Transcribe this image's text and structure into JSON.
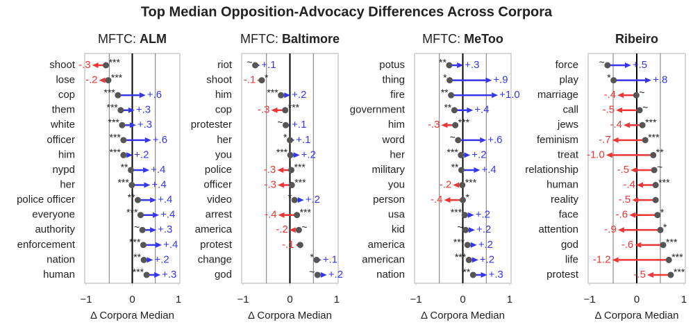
{
  "title": "Top Median Opposition-Advocacy Differences Across Corpora",
  "chart_data": [
    {
      "type": "arrow",
      "title_prefix": "MFTC:",
      "title": "ALM",
      "xlabel": "Δ Corpora Median",
      "xlim": [
        -1.03,
        1.03
      ],
      "xticks": [
        {
          "value": -1,
          "label": "−1"
        },
        0,
        1
      ],
      "vlines": [
        -0.5,
        0,
        0.5
      ],
      "color_positive": "#3535ee",
      "color_negative": "#ee3535",
      "dot_color": "#555555",
      "categories": [
        "shoot",
        "lose",
        "cop",
        "them",
        "white",
        "officer",
        "him",
        "nypd",
        "her",
        "police officer",
        "everyone",
        "authority",
        "enforcement",
        "nation",
        "human"
      ],
      "start": [
        -0.57,
        -0.52,
        -0.31,
        -0.25,
        -0.22,
        -0.19,
        -0.19,
        -0.03,
        -0.01,
        0.12,
        0.18,
        0.22,
        0.24,
        0.25,
        0.31
      ],
      "values": [
        -0.3,
        -0.2,
        0.6,
        0.3,
        0.3,
        0.6,
        0.2,
        0.4,
        0.4,
        0.4,
        0.4,
        0.3,
        0.4,
        0.2,
        0.3
      ],
      "value_labels": [
        "-.3",
        "-.2",
        "+.6",
        "+.3",
        "+.3",
        "+.6",
        "+.2",
        "+.4",
        "+.4",
        "+.4",
        "+.4",
        "+.3",
        "+.4",
        "+.2",
        "+.3"
      ],
      "stars": [
        "***",
        "***",
        "***",
        "***",
        "***",
        "***",
        "***",
        "**",
        "***",
        "**",
        "***",
        "~",
        "***",
        "**",
        "***"
      ]
    },
    {
      "type": "arrow",
      "title_prefix": "MFTC:",
      "title": "Baltimore",
      "xlabel": "Δ Corpora Median",
      "xlim": [
        -1.03,
        1.03
      ],
      "xticks": [
        {
          "value": -1,
          "label": "−1"
        },
        0,
        1
      ],
      "vlines": [
        -0.5,
        0,
        0.5
      ],
      "color_positive": "#3535ee",
      "color_negative": "#ee3535",
      "dot_color": "#555555",
      "categories": [
        "riot",
        "shoot",
        "him",
        "cop",
        "protester",
        "her",
        "you",
        "police",
        "officer",
        "video",
        "arrest",
        "america",
        "protest",
        "change",
        "god"
      ],
      "start": [
        -0.74,
        -0.6,
        -0.19,
        -0.1,
        -0.09,
        0.0,
        0.01,
        0.03,
        0.04,
        0.1,
        0.15,
        0.19,
        0.22,
        0.57,
        0.59
      ],
      "values": [
        0.1,
        -0.1,
        0.2,
        -0.3,
        0.1,
        0.1,
        0.2,
        -0.3,
        -0.3,
        0.2,
        -0.4,
        -0.2,
        -0.1,
        0.1,
        0.2
      ],
      "value_labels": [
        "+.1",
        "-.1",
        "+.2",
        "-.3",
        "+.1",
        "+.1",
        "+.2",
        "-.3",
        "-.3",
        "+.2",
        "-.4",
        "-.2",
        "-.1",
        "+.1",
        "+.2"
      ],
      "stars": [
        "~",
        "*",
        "***",
        "***",
        "~",
        "*",
        "***",
        "***",
        "***",
        "*",
        "***",
        "~",
        null,
        "*",
        "~"
      ]
    },
    {
      "type": "arrow",
      "title_prefix": "MFTC:",
      "title": "MeToo",
      "xlabel": "Δ Corpora Median",
      "xlim": [
        -1.03,
        1.03
      ],
      "xticks": [
        {
          "value": -1,
          "label": "−1"
        },
        0,
        1
      ],
      "vlines": [
        -0.5,
        0,
        0.5
      ],
      "color_positive": "#3535ee",
      "color_negative": "#ee3535",
      "dot_color": "#555555",
      "categories": [
        "potus",
        "thing",
        "fire",
        "government",
        "him",
        "word",
        "her",
        "military",
        "you",
        "person",
        "usa",
        "kid",
        "america",
        "american",
        "nation"
      ],
      "start": [
        -0.29,
        -0.28,
        -0.25,
        -0.18,
        -0.16,
        -0.1,
        -0.04,
        -0.03,
        -0.01,
        0.0,
        0.04,
        0.06,
        0.1,
        0.13,
        0.22
      ],
      "values": [
        0.3,
        0.9,
        1.0,
        0.4,
        -0.3,
        0.6,
        0.2,
        0.4,
        -0.2,
        -0.4,
        0.2,
        0.2,
        0.2,
        0.2,
        0.3
      ],
      "value_labels": [
        "+.3",
        "+.9",
        "+1.0",
        "+.4",
        "-.3",
        "+.6",
        "+.2",
        "+.4",
        "-.2",
        "-.4",
        "+.2",
        "+.2",
        "+.2",
        "+.2",
        "+.3"
      ],
      "stars": [
        "**",
        "*",
        "**",
        "**",
        "***",
        "~",
        "***",
        "**",
        "***",
        "*",
        "***",
        "~",
        "***",
        "***",
        "**"
      ]
    },
    {
      "type": "arrow",
      "title": "Ribeiro",
      "xlabel": "Δ Corpora Median",
      "xlim": [
        -1.03,
        1.03
      ],
      "xticks": [
        {
          "value": -1,
          "label": "−1"
        },
        0,
        1
      ],
      "vlines": [
        -0.5,
        0,
        0.5
      ],
      "color_positive": "#3535ee",
      "color_negative": "#ee3535",
      "dot_color": "#555555",
      "categories": [
        "force",
        "play",
        "marriage",
        "call",
        "jews",
        "feminism",
        "treat",
        "relationship",
        "human",
        "reality",
        "face",
        "attention",
        "god",
        "life",
        "protest"
      ],
      "start": [
        -0.62,
        -0.49,
        -0.01,
        0.06,
        0.12,
        0.18,
        0.35,
        0.37,
        0.4,
        0.4,
        0.44,
        0.5,
        0.56,
        0.68,
        0.72
      ],
      "values": [
        0.5,
        0.8,
        -0.4,
        -0.5,
        -0.4,
        -0.7,
        -1.0,
        -0.5,
        -0.4,
        -0.5,
        -0.6,
        -0.9,
        -0.6,
        -1.2,
        -0.5
      ],
      "value_labels": [
        "+.5",
        "+.8",
        "-.4",
        "-.5",
        "-.4",
        "-.7",
        "-1.0",
        "-.5",
        "-.4",
        "-.5",
        "-.6",
        "-.9",
        "-.6",
        "-1.2",
        "-.5"
      ],
      "stars": [
        "~",
        "*",
        "~",
        "~",
        "***",
        "***",
        "**",
        "~",
        "***",
        null,
        "*",
        "*",
        "***",
        "***",
        "***"
      ]
    }
  ]
}
